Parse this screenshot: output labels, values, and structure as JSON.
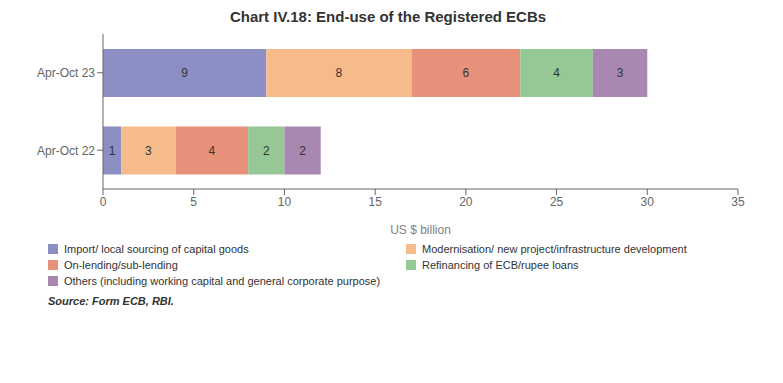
{
  "chart_data": {
    "type": "bar",
    "title": "Chart IV.18: End-use of the Registered ECBs",
    "orientation": "horizontal",
    "stacked": true,
    "data_labels": true,
    "grid": false,
    "legend": "bottom",
    "categories": [
      "Apr-Oct 23",
      "Apr-Oct 22"
    ],
    "series": [
      {
        "name": "Import/ local sourcing of capital goods",
        "color": "#8b8fc4",
        "values": [
          9,
          1
        ]
      },
      {
        "name": "Modernisation/ new project/infrastructure development",
        "color": "#f5bb8a",
        "values": [
          8,
          3
        ]
      },
      {
        "name": "On-lending/sub-lending",
        "color": "#e8917a",
        "values": [
          6,
          4
        ]
      },
      {
        "name": "Refinancing of ECB/rupee loans",
        "color": "#96c896",
        "values": [
          4,
          2
        ]
      },
      {
        "name": "Others (including working capital and general corporate purpose)",
        "color": "#a888b0",
        "values": [
          3,
          2
        ]
      }
    ],
    "xlabel": "US $ billion",
    "xlim": [
      0,
      35
    ],
    "xticks": [
      0,
      5,
      10,
      15,
      20,
      25,
      30,
      35
    ],
    "annotations": [
      "Source: Form ECB, RBI."
    ]
  }
}
